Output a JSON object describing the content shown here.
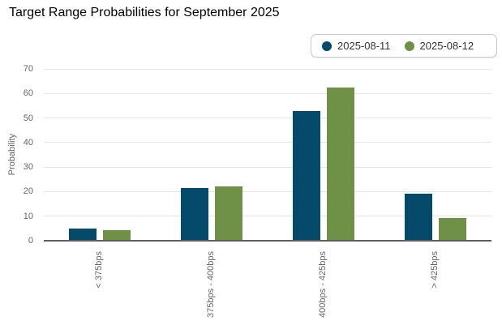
{
  "title": "Target Range Probabilities for September 2025",
  "legend": {
    "items": [
      {
        "label": "2025-08-11",
        "color": "#05496b"
      },
      {
        "label": "2025-08-12",
        "color": "#6f9147"
      }
    ]
  },
  "y_axis": {
    "title": "Probability",
    "ticks": [
      0,
      10,
      20,
      30,
      40,
      50,
      60,
      70
    ]
  },
  "chart_data": {
    "type": "bar",
    "title": "Target Range Probabilities for September 2025",
    "categories": [
      "< 375bps",
      "375bps - 400bps",
      "400bps - 425bps",
      "> 425bps"
    ],
    "series": [
      {
        "name": "2025-08-11",
        "color": "#05496b",
        "values": [
          4.9,
          21.5,
          52.9,
          19.0
        ]
      },
      {
        "name": "2025-08-12",
        "color": "#6f9147",
        "values": [
          4.2,
          22.0,
          62.5,
          9.3
        ]
      }
    ],
    "xlabel": "",
    "ylabel": "Probability",
    "ylim": [
      0,
      70
    ],
    "grid": true,
    "legend_position": "top-right"
  },
  "colors": {
    "title_text": "#000000",
    "axis_label_text": "#666666",
    "gridline": "#e6e6e6",
    "axis_line": "#5e5e5e",
    "legend_border": "#c9c9c9",
    "legend_text": "#333333",
    "background": "#ffffff"
  }
}
